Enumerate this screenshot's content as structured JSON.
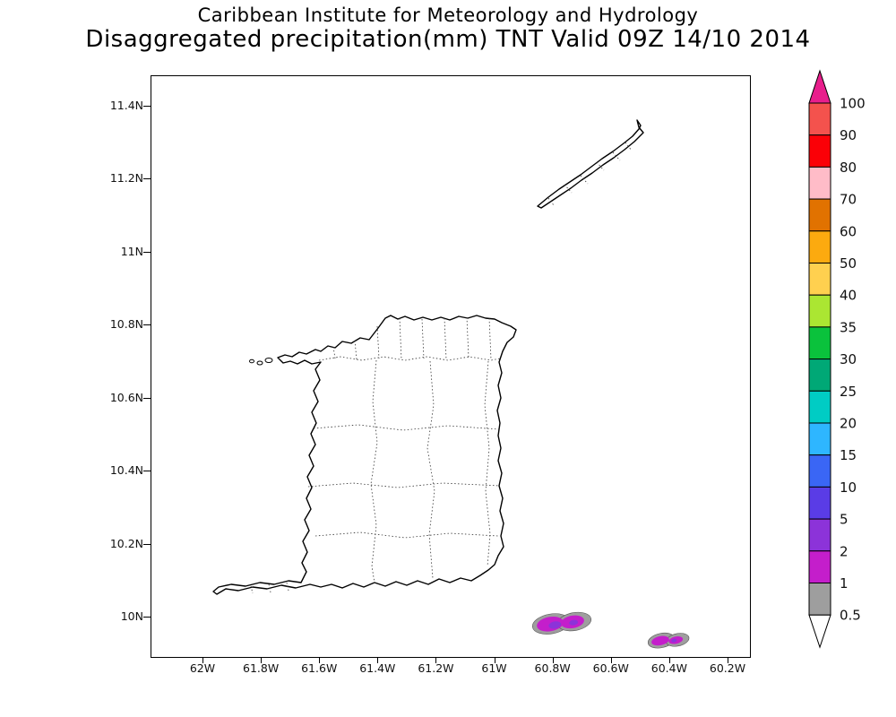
{
  "titles": {
    "line1": "Caribbean Institute for Meteorology and Hydrology",
    "line2": "Disaggregated precipitation(mm) TNT Valid 09Z 14/10 2014"
  },
  "axes": {
    "y_ticks": [
      "11.4N",
      "11.2N",
      "11N",
      "10.8N",
      "10.6N",
      "10.4N",
      "10.2N",
      "10N"
    ],
    "x_ticks": [
      "62W",
      "61.8W",
      "61.6W",
      "61.4W",
      "61.2W",
      "61W",
      "60.8W",
      "60.6W",
      "60.4W",
      "60.2W"
    ]
  },
  "colorbar": {
    "labels": [
      "100",
      "90",
      "80",
      "70",
      "60",
      "50",
      "40",
      "35",
      "30",
      "25",
      "20",
      "15",
      "10",
      "5",
      "2",
      "1",
      "0.5"
    ],
    "top_arrow_color": "#e81e8c",
    "bottom_arrow_color": "#ffffff",
    "box_colors": [
      "#f4524d",
      "#fb0007",
      "#ffbcc8",
      "#e17200",
      "#fcaa0f",
      "#ffd04f",
      "#abe632",
      "#0ac23c",
      "#00a876",
      "#00ccc4",
      "#2eb6ff",
      "#3a66f5",
      "#5a3ce6",
      "#8c33d9",
      "#c41ecb",
      "#9e9e9e"
    ]
  },
  "map": {
    "region": "Trinidad and Tobago",
    "blob_fill": {
      "outer": "#9e9e9e",
      "mid": "#c41ecb",
      "core": "#8c33d9"
    }
  }
}
